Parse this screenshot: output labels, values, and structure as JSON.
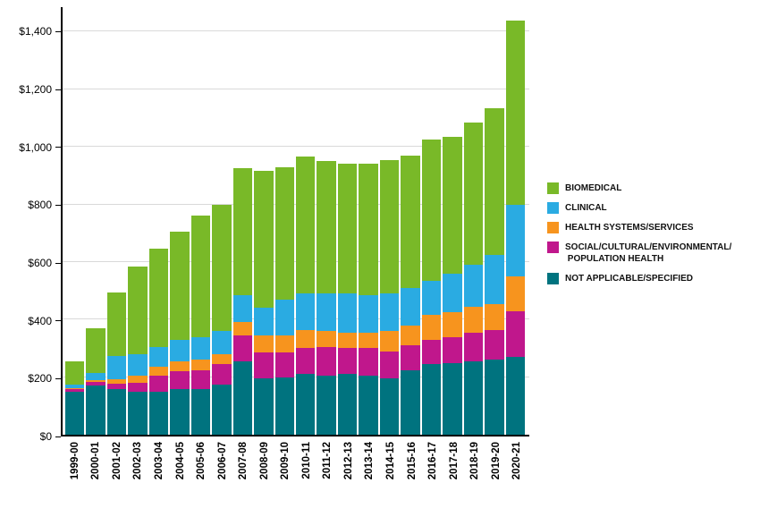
{
  "chart_data": {
    "type": "bar",
    "stacked": true,
    "title": "",
    "xlabel": "",
    "ylabel": "",
    "ylim": [
      0,
      1485
    ],
    "grid": true,
    "legend_position": "right",
    "categories": [
      "1999-00",
      "2000-01",
      "2001-02",
      "2002-03",
      "2003-04",
      "2004-05",
      "2005-06",
      "2006-07",
      "2007-08",
      "2008-09",
      "2009-10",
      "2010-11",
      "2011-12",
      "2012-13",
      "2013-14",
      "2014-15",
      "2015-16",
      "2016-17",
      "2017-18",
      "2018-19",
      "2019-20",
      "2020-21"
    ],
    "series": [
      {
        "name": "NOT APPLICABLE/SPECIFIED",
        "color": "#00737f",
        "values": [
          148,
          170,
          158,
          150,
          150,
          160,
          160,
          175,
          255,
          195,
          200,
          210,
          205,
          210,
          205,
          195,
          225,
          245,
          250,
          255,
          260,
          270
        ]
      },
      {
        "name": "SOCIAL/CULTURAL/ENVIRONMENTAL/ POPULATION HEALTH",
        "color": "#c0178c",
        "values": [
          10,
          12,
          18,
          30,
          55,
          60,
          65,
          70,
          90,
          90,
          85,
          90,
          100,
          90,
          95,
          95,
          85,
          85,
          90,
          100,
          105,
          160
        ]
      },
      {
        "name": "HEALTH SYSTEMS/SERVICES",
        "color": "#f7941e",
        "values": [
          5,
          8,
          18,
          25,
          30,
          35,
          35,
          35,
          45,
          60,
          60,
          65,
          55,
          55,
          55,
          70,
          70,
          85,
          85,
          90,
          90,
          120
        ]
      },
      {
        "name": "CLINICAL",
        "color": "#2aabe2",
        "values": [
          12,
          25,
          80,
          75,
          70,
          75,
          80,
          80,
          95,
          95,
          125,
          125,
          130,
          135,
          130,
          130,
          130,
          120,
          135,
          145,
          170,
          250
        ]
      },
      {
        "name": "BIOMEDICAL",
        "color": "#79b928",
        "values": [
          80,
          155,
          220,
          305,
          340,
          375,
          420,
          440,
          440,
          475,
          460,
          475,
          460,
          450,
          455,
          465,
          460,
          490,
          475,
          495,
          510,
          640
        ]
      }
    ],
    "totals": [
      255,
      370,
      494,
      585,
      645,
      705,
      760,
      800,
      925,
      915,
      930,
      965,
      950,
      940,
      940,
      955,
      970,
      1025,
      1035,
      1085,
      1135,
      1440
    ],
    "y_ticks": [
      {
        "value": 0,
        "label": "$0"
      },
      {
        "value": 200,
        "label": "$200"
      },
      {
        "value": 400,
        "label": "$400"
      },
      {
        "value": 600,
        "label": "$600"
      },
      {
        "value": 800,
        "label": "$800"
      },
      {
        "value": 1000,
        "label": "$1,000"
      },
      {
        "value": 1200,
        "label": "$1,200"
      },
      {
        "value": 1400,
        "label": "$1,400"
      }
    ],
    "legend": [
      {
        "label": "BIOMEDICAL",
        "color": "#79b928"
      },
      {
        "label": "CLINICAL",
        "color": "#2aabe2"
      },
      {
        "label": "HEALTH SYSTEMS/SERVICES",
        "color": "#f7941e"
      },
      {
        "label": "SOCIAL/CULTURAL/ENVIRONMENTAL/\n POPULATION HEALTH",
        "color": "#c0178c"
      },
      {
        "label": "NOT APPLICABLE/SPECIFIED",
        "color": "#00737f"
      }
    ]
  }
}
